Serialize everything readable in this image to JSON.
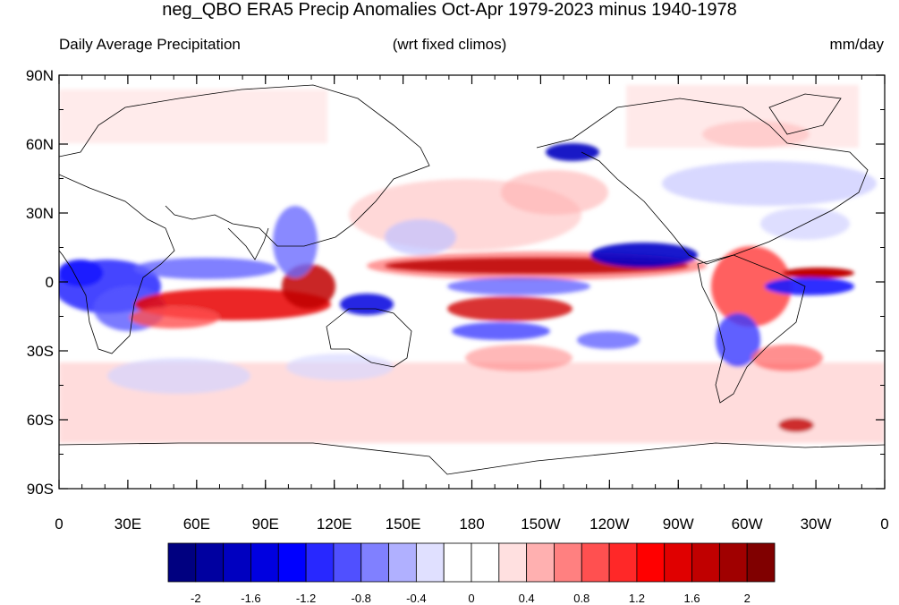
{
  "title": "neg_QBO ERA5 Precip Anomalies Oct-Apr 1979-2023 minus 1940-1978",
  "subtitle_left": "Daily Average Precipitation",
  "subtitle_center": "(wrt fixed climos)",
  "subtitle_right": "mm/day",
  "lat_ticks": [
    "90N",
    "60N",
    "30N",
    "0",
    "30S",
    "60S",
    "90S"
  ],
  "lon_ticks": [
    "0",
    "30E",
    "60E",
    "90E",
    "120E",
    "150E",
    "180",
    "150W",
    "120W",
    "90W",
    "60W",
    "30W",
    "0"
  ],
  "colorbar": {
    "colors": [
      "#000080",
      "#0000a0",
      "#0000c0",
      "#0000e0",
      "#0000ff",
      "#2828ff",
      "#5050ff",
      "#8080ff",
      "#b0b0ff",
      "#e0e0ff",
      "#ffffff",
      "#ffffff",
      "#ffe0e0",
      "#ffb0b0",
      "#ff8080",
      "#ff5050",
      "#ff2828",
      "#ff0000",
      "#e00000",
      "#c00000",
      "#a00000",
      "#800000"
    ],
    "labels": [
      "-2",
      "-1.6",
      "-1.2",
      "-0.8",
      "-0.4",
      "0",
      "0.4",
      "0.8",
      "1.2",
      "1.6",
      "2"
    ]
  }
}
